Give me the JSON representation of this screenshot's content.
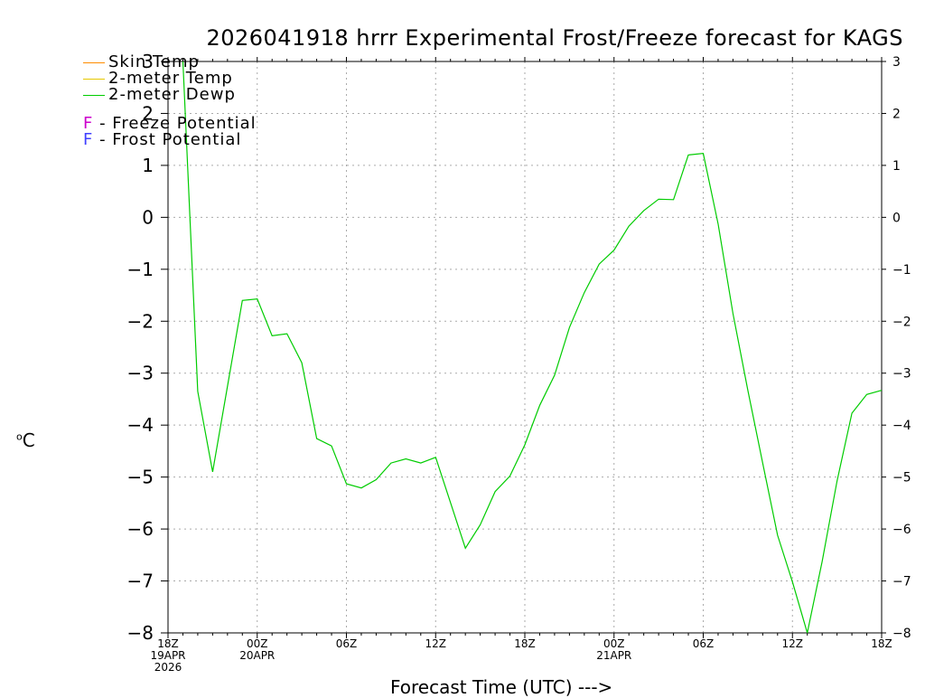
{
  "chart_data": {
    "type": "line",
    "title": "2026041918 hrrr Experimental Frost/Freeze forecast for KAGS",
    "ylabel": "C",
    "ylabel_prefix": "o",
    "xlabel": "Forecast Time (UTC) --->",
    "ylim": [
      -8,
      3
    ],
    "yticks": [
      -8,
      -7,
      -6,
      -5,
      -4,
      -3,
      -2,
      -1,
      0,
      1,
      2,
      3
    ],
    "xlim": [
      0,
      48
    ],
    "grid": true,
    "xticks": [
      {
        "x": 0,
        "lines": [
          "18Z",
          "19APR",
          "2026"
        ]
      },
      {
        "x": 6,
        "lines": [
          "00Z",
          "20APR"
        ]
      },
      {
        "x": 12,
        "lines": [
          "06Z"
        ]
      },
      {
        "x": 18,
        "lines": [
          "12Z"
        ]
      },
      {
        "x": 24,
        "lines": [
          "18Z"
        ]
      },
      {
        "x": 30,
        "lines": [
          "00Z",
          "21APR"
        ]
      },
      {
        "x": 36,
        "lines": [
          "06Z"
        ]
      },
      {
        "x": 42,
        "lines": [
          "12Z"
        ]
      },
      {
        "x": 48,
        "lines": [
          "18Z"
        ]
      }
    ],
    "legend": [
      {
        "label": "Skin Temp",
        "color": "#ff8c00"
      },
      {
        "label": "2-meter Temp",
        "color": "#e6c800"
      },
      {
        "label": "2-meter Dewp",
        "color": "#00cc00"
      }
    ],
    "legend_notes": [
      {
        "letter": "F",
        "text": " - Freeze Potential",
        "color": "#cc00cc"
      },
      {
        "letter": "F",
        "text": " - Frost Potential",
        "color": "#4040ff"
      }
    ],
    "series": [
      {
        "name": "2-meter Dewp",
        "color": "#00cc00",
        "x": [
          1,
          2,
          3,
          5,
          6,
          7,
          8,
          9,
          10,
          11,
          12,
          13,
          14,
          15,
          16,
          17,
          18,
          20,
          21,
          22,
          23,
          24,
          25,
          26,
          27,
          28,
          29,
          30,
          31,
          32,
          33,
          34,
          35,
          36,
          37,
          38,
          39,
          40,
          41,
          42,
          43,
          44,
          45,
          46,
          47,
          48
        ],
        "values": [
          3.0,
          -3.35,
          -4.9,
          -1.6,
          -1.57,
          -2.28,
          -2.24,
          -2.8,
          -4.26,
          -4.4,
          -5.13,
          -5.21,
          -5.05,
          -4.73,
          -4.65,
          -4.73,
          -4.62,
          -6.37,
          -5.92,
          -5.28,
          -4.98,
          -4.38,
          -3.62,
          -3.04,
          -2.12,
          -1.45,
          -0.9,
          -0.63,
          -0.17,
          0.13,
          0.35,
          0.34,
          1.2,
          1.23,
          -0.13,
          -1.85,
          -3.33,
          -4.73,
          -6.12,
          -7.02,
          -8.0,
          -6.62,
          -5.08,
          -3.77,
          -3.41,
          -3.33
        ]
      }
    ]
  }
}
